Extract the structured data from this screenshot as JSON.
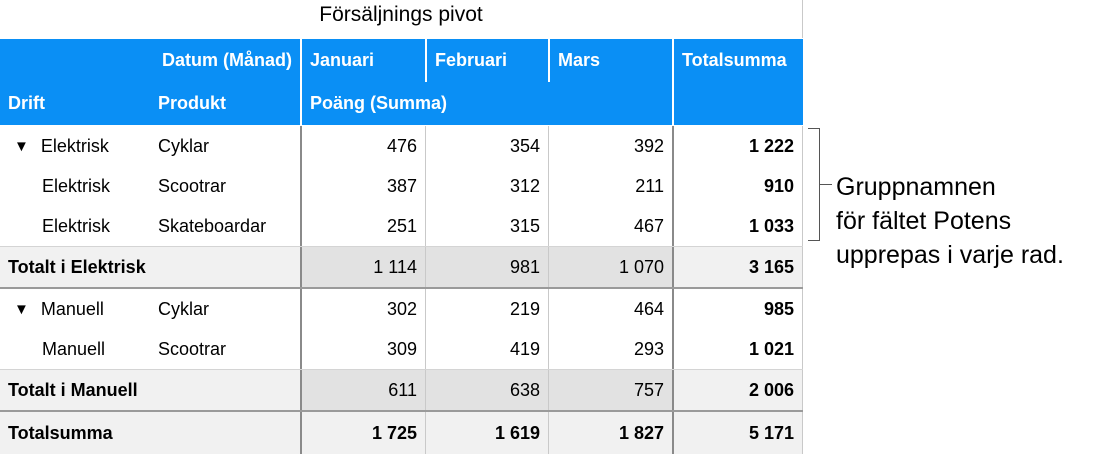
{
  "title": "Försäljnings pivot",
  "header": {
    "column_field": "Datum  (Månad)",
    "months": [
      "Januari",
      "Februari",
      "Mars"
    ],
    "total_label": "Totalsumma",
    "row_field_1": "Drift",
    "row_field_2": "Produkt",
    "value_field": "Poäng  (Summa)"
  },
  "groups": [
    {
      "name": "Elektrisk",
      "rows": [
        {
          "drift": "Elektrisk",
          "product": "Cyklar",
          "values": [
            "476",
            "354",
            "392"
          ],
          "total": "1 222"
        },
        {
          "drift": "Elektrisk",
          "product": "Scootrar",
          "values": [
            "387",
            "312",
            "211"
          ],
          "total": "910"
        },
        {
          "drift": "Elektrisk",
          "product": "Skateboardar",
          "values": [
            "251",
            "315",
            "467"
          ],
          "total": "1 033"
        }
      ],
      "subtotal": {
        "label": "Totalt i Elektrisk",
        "values": [
          "1 114",
          "981",
          "1 070"
        ],
        "total": "3 165"
      }
    },
    {
      "name": "Manuell",
      "rows": [
        {
          "drift": "Manuell",
          "product": "Cyklar",
          "values": [
            "302",
            "219",
            "464"
          ],
          "total": "985"
        },
        {
          "drift": "Manuell",
          "product": "Scootrar",
          "values": [
            "309",
            "419",
            "293"
          ],
          "total": "1 021"
        }
      ],
      "subtotal": {
        "label": "Totalt i Manuell",
        "values": [
          "611",
          "638",
          "757"
        ],
        "total": "2 006"
      }
    }
  ],
  "grand_total": {
    "label": "Totalsumma",
    "values": [
      "1 725",
      "1 619",
      "1 827"
    ],
    "total": "5 171"
  },
  "annotation": {
    "lines": [
      "Gruppnamnen",
      "för fältet Potens",
      "upprepas i varje rad."
    ]
  },
  "icons": {
    "collapse": "disclosure-triangle-down-icon"
  },
  "colors": {
    "header": "#0a8ff5",
    "subtotal_bg": "#f1f1f1",
    "subtotal_values_bg": "#e2e2e2"
  }
}
